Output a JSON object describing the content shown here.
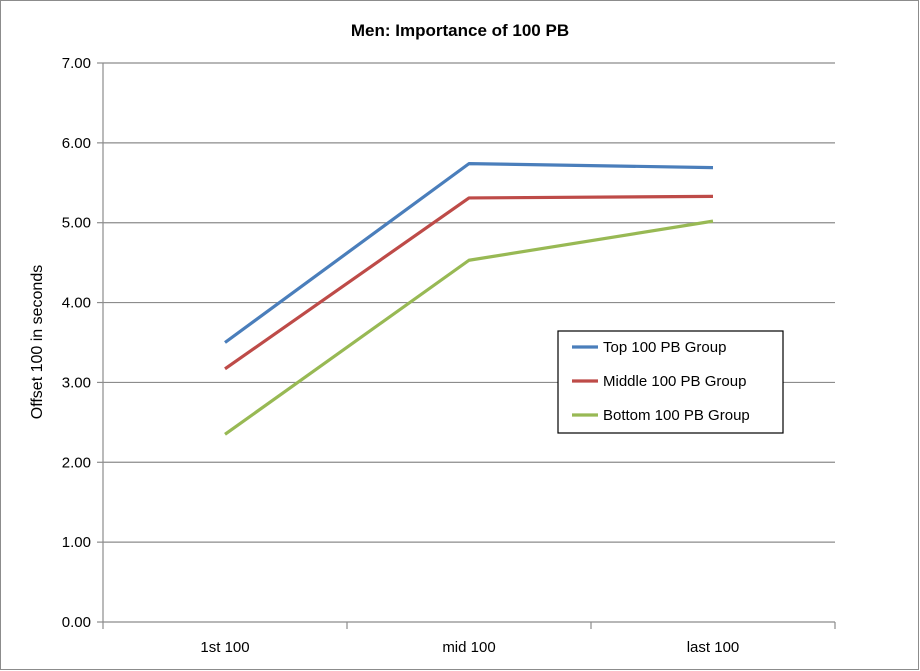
{
  "chart_data": {
    "type": "line",
    "title": "Men: Importance of 100 PB",
    "xlabel": "",
    "ylabel": "Offset 100 in seconds",
    "categories": [
      "1st 100",
      "mid 100",
      "last 100"
    ],
    "ylim": [
      0,
      7
    ],
    "yticks": [
      "0.00",
      "1.00",
      "2.00",
      "3.00",
      "4.00",
      "5.00",
      "6.00",
      "7.00"
    ],
    "grid": true,
    "legend_position": "right",
    "series": [
      {
        "name": "Top 100 PB Group",
        "color": "#4a7ebb",
        "values": [
          3.5,
          5.74,
          5.69
        ]
      },
      {
        "name": "Middle 100 PB Group",
        "color": "#be4b48",
        "values": [
          3.17,
          5.31,
          5.33
        ]
      },
      {
        "name": "Bottom 100 PB Group",
        "color": "#98b954",
        "values": [
          2.35,
          4.53,
          5.02
        ]
      }
    ]
  }
}
